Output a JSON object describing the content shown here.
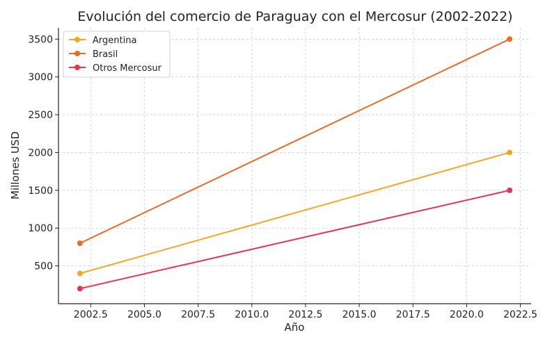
{
  "chart_data": {
    "type": "line",
    "title": "Evolución del comercio de Paraguay con el Mercosur (2002-2022)",
    "xlabel": "Año",
    "ylabel": "Millones USD",
    "xlim": [
      2001.0,
      2023.0
    ],
    "ylim": [
      0,
      3650
    ],
    "x_ticks": [
      2002.5,
      2005.0,
      2007.5,
      2010.0,
      2012.5,
      2015.0,
      2017.5,
      2020.0,
      2022.5
    ],
    "x_tick_labels": [
      "2002.5",
      "2005.0",
      "2007.5",
      "2010.0",
      "2012.5",
      "2015.0",
      "2017.5",
      "2020.0",
      "2022.5"
    ],
    "y_ticks": [
      500,
      1000,
      1500,
      2000,
      2500,
      3000,
      3500
    ],
    "y_tick_labels": [
      "500",
      "1000",
      "1500",
      "2000",
      "2500",
      "3000",
      "3500"
    ],
    "grid": true,
    "legend_position": "top-left",
    "x": [
      2002,
      2022
    ],
    "series": [
      {
        "name": "Argentina",
        "values": [
          400,
          2000
        ],
        "color": "#F5A623"
      },
      {
        "name": "Brasil",
        "values": [
          800,
          3500
        ],
        "color": "#EE6A24"
      },
      {
        "name": "Otros Mercosur",
        "values": [
          200,
          1500
        ],
        "color": "#E8344E"
      }
    ]
  }
}
